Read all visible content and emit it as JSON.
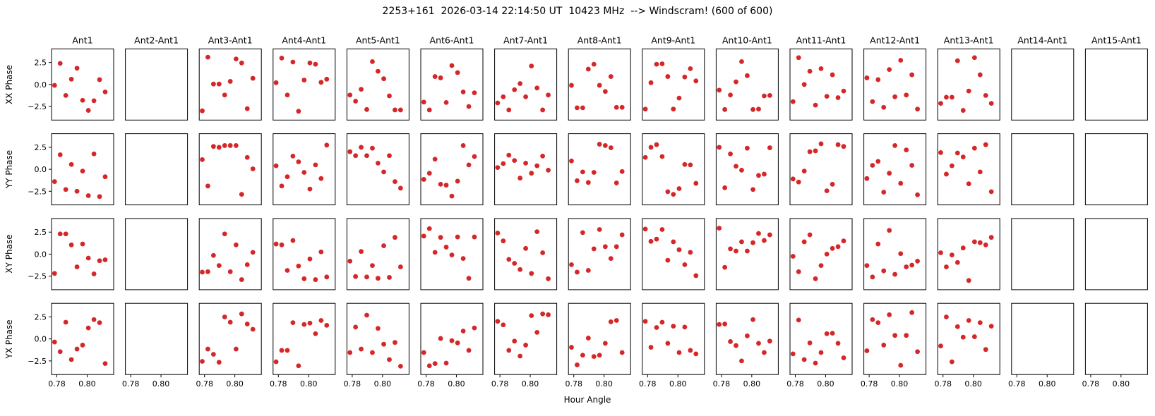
{
  "title": "2253+161  2026-03-14 22:14:50 UT  10423 MHz  --> Windscram! (600 of 600)",
  "chart_data": {
    "type": "scatter",
    "title": "2253+161  2026-03-14 22:14:50 UT  10423 MHz  --> Windscram! (600 of 600)",
    "xlabel": "Hour Angle",
    "rows": [
      "XX Phase",
      "YY Phase",
      "XY Phase",
      "YX Phase"
    ],
    "columns": [
      "Ant1",
      "Ant2-Ant1",
      "Ant3-Ant1",
      "Ant4-Ant1",
      "Ant5-Ant1",
      "Ant6-Ant1",
      "Ant7-Ant1",
      "Ant8-Ant1",
      "Ant9-Ant1",
      "Ant10-Ant1",
      "Ant11-Ant1",
      "Ant12-Ant1",
      "Ant13-Ant1",
      "Ant14-Ant1",
      "Ant15-Ant1"
    ],
    "empty_columns": [
      "Ant2-Ant1",
      "Ant14-Ant1",
      "Ant15-Ant1"
    ],
    "xlim": [
      0.7765,
      0.8175
    ],
    "ylim": [
      -4.05,
      4.05
    ],
    "xticks": [
      0.78,
      0.8
    ],
    "yticks": [
      2.5,
      0.0,
      -2.5
    ],
    "grid": false,
    "legend": "none",
    "point_color": "#d62728",
    "border_color": "#000000",
    "background": "#ffffff",
    "x": [
      0.7785,
      0.7822,
      0.7859,
      0.7896,
      0.7933,
      0.797,
      0.8008,
      0.8045,
      0.8082,
      0.8119
    ],
    "panels": {
      "XX Phase": {
        "Ant1": [
          -0.1,
          2.4,
          -1.25,
          0.6,
          1.85,
          -1.8,
          -2.95,
          -1.85,
          0.55,
          -0.85
        ],
        "Ant2-Ant1": [],
        "Ant3-Ant1": [
          -3.0,
          3.1,
          0.05,
          0.05,
          -1.2,
          0.35,
          2.9,
          2.45,
          -2.75,
          0.7
        ],
        "Ant4-Ant1": [
          0.2,
          3.0,
          -1.2,
          2.55,
          -3.05,
          0.5,
          2.45,
          2.3,
          0.25,
          0.6
        ],
        "Ant5-Ant1": [
          -1.2,
          -1.9,
          -0.55,
          -2.85,
          2.6,
          1.5,
          0.65,
          -1.3,
          -2.9,
          -2.9
        ],
        "Ant6-Ant1": [
          -2.0,
          -2.9,
          0.9,
          0.75,
          -2.05,
          2.15,
          1.35,
          -0.85,
          -2.5,
          -0.95
        ],
        "Ant7-Ant1": [
          -2.1,
          -1.4,
          -2.9,
          -0.6,
          0.1,
          -1.4,
          2.1,
          -0.4,
          -2.9,
          -1.2
        ],
        "Ant8-Ant1": [
          -0.1,
          -2.65,
          -2.65,
          1.75,
          2.3,
          -0.1,
          -0.8,
          0.9,
          -2.6,
          -2.6
        ],
        "Ant9-Ant1": [
          -2.8,
          0.2,
          2.3,
          2.35,
          0.9,
          -2.8,
          -1.55,
          0.85,
          1.8,
          0.4
        ],
        "Ant10-Ant1": [
          -0.65,
          -2.85,
          -1.2,
          0.3,
          2.6,
          1.0,
          -2.85,
          -2.8,
          -1.3,
          -1.25
        ],
        "Ant11-Ant1": [
          -1.95,
          3.05,
          0.0,
          1.5,
          -2.35,
          1.8,
          -1.35,
          1.1,
          -1.5,
          -0.75
        ],
        "Ant12-Ant1": [
          0.75,
          -1.95,
          0.55,
          -2.6,
          1.7,
          -1.4,
          2.75,
          -1.2,
          1.1,
          -2.8
        ],
        "Ant13-Ant1": [
          -2.15,
          -1.45,
          -1.45,
          2.7,
          -2.95,
          -0.75,
          3.05,
          1.1,
          -1.25,
          -2.15
        ],
        "Ant14-Ant1": [],
        "Ant15-Ant1": []
      },
      "YY Phase": {
        "Ant1": [
          -1.4,
          1.65,
          -2.3,
          0.55,
          -2.5,
          -0.2,
          -3.0,
          1.75,
          -3.1,
          -0.85
        ],
        "Ant2-Ant1": [],
        "Ant3-Ant1": [
          1.1,
          -1.9,
          2.6,
          2.5,
          2.7,
          2.7,
          2.7,
          -2.85,
          1.35,
          0.05
        ],
        "Ant4-Ant1": [
          0.4,
          -1.9,
          -0.85,
          1.5,
          0.85,
          -0.35,
          -2.25,
          0.5,
          -1.05,
          2.75
        ],
        "Ant5-Ant1": [
          2.0,
          1.55,
          2.5,
          1.55,
          2.4,
          0.7,
          -0.3,
          1.55,
          -1.4,
          -2.15
        ],
        "Ant6-Ant1": [
          -1.15,
          -0.45,
          1.15,
          -1.7,
          -1.8,
          -3.05,
          -1.35,
          2.7,
          0.5,
          1.45
        ],
        "Ant7-Ant1": [
          0.2,
          0.65,
          1.6,
          1.0,
          -1.0,
          0.7,
          -0.45,
          0.4,
          1.5,
          -0.1
        ],
        "Ant8-Ant1": [
          0.95,
          -1.3,
          -0.3,
          -1.5,
          -0.35,
          2.85,
          2.7,
          2.45,
          -1.55,
          -0.25
        ],
        "Ant9-Ant1": [
          1.35,
          2.5,
          2.8,
          1.45,
          -2.55,
          -2.85,
          -2.2,
          0.55,
          0.5,
          -1.6
        ],
        "Ant10-Ant1": [
          2.5,
          -2.1,
          1.75,
          0.35,
          -0.1,
          2.4,
          -2.3,
          -0.7,
          -0.55,
          2.45
        ],
        "Ant11-Ant1": [
          -1.1,
          -1.45,
          -0.2,
          2.0,
          2.1,
          2.9,
          -2.45,
          -1.7,
          2.8,
          2.6
        ],
        "Ant12-Ant1": [
          -1.05,
          0.45,
          0.9,
          -2.6,
          -0.45,
          2.7,
          -1.6,
          2.2,
          0.45,
          -2.9
        ],
        "Ant13-Ant1": [
          1.9,
          -0.55,
          0.4,
          1.85,
          1.4,
          -1.65,
          2.4,
          -0.3,
          2.8,
          -2.55
        ],
        "Ant14-Ant1": [],
        "Ant15-Ant1": []
      },
      "XY Phase": {
        "Ant1": [
          -2.2,
          2.3,
          2.3,
          1.05,
          -1.45,
          1.15,
          -0.45,
          -2.25,
          -0.75,
          -0.65
        ],
        "Ant2-Ant1": [],
        "Ant3-Ant1": [
          -2.05,
          -2.0,
          -0.15,
          -1.3,
          2.3,
          -2.0,
          1.05,
          -2.9,
          -1.2,
          0.2
        ],
        "Ant4-Ant1": [
          1.15,
          1.05,
          -1.85,
          1.55,
          -1.35,
          -2.8,
          -0.55,
          -2.9,
          0.25,
          -2.6
        ],
        "Ant5-Ant1": [
          -0.8,
          -2.55,
          0.3,
          -2.6,
          -1.3,
          -2.75,
          0.95,
          -2.65,
          1.9,
          -1.45
        ],
        "Ant6-Ant1": [
          2.05,
          2.9,
          0.2,
          1.9,
          0.8,
          -0.1,
          1.95,
          -0.5,
          -2.75,
          1.95
        ],
        "Ant7-Ant1": [
          2.4,
          1.5,
          -0.6,
          -1.05,
          -1.75,
          0.65,
          -2.2,
          2.55,
          0.15,
          -2.8
        ],
        "Ant8-Ant1": [
          -1.2,
          -2.05,
          2.45,
          -1.85,
          0.6,
          2.8,
          0.85,
          -0.5,
          0.85,
          2.2
        ],
        "Ant9-Ant1": [
          2.85,
          1.45,
          1.7,
          2.8,
          -0.7,
          1.4,
          0.5,
          -1.2,
          0.2,
          -2.45
        ],
        "Ant10-Ant1": [
          2.95,
          -1.5,
          0.6,
          0.35,
          1.4,
          0.35,
          1.3,
          2.35,
          1.55,
          2.2
        ],
        "Ant11-Ant1": [
          -0.25,
          -2.0,
          1.4,
          2.2,
          -2.8,
          -1.3,
          0.0,
          0.65,
          0.85,
          1.5
        ],
        "Ant12-Ant1": [
          -1.3,
          -2.6,
          1.15,
          -1.9,
          2.7,
          -2.3,
          0.05,
          -1.45,
          -1.25,
          -0.8
        ],
        "Ant13-Ant1": [
          0.15,
          -1.45,
          -0.1,
          -0.95,
          0.7,
          -3.0,
          1.4,
          1.3,
          1.05,
          1.9
        ],
        "Ant14-Ant1": [],
        "Ant15-Ant1": []
      },
      "YX Phase": {
        "Ant1": [
          -0.35,
          -1.45,
          1.9,
          -2.35,
          -1.15,
          -0.7,
          1.25,
          2.2,
          1.85,
          -2.8
        ],
        "Ant2-Ant1": [],
        "Ant3-Ant1": [
          -2.55,
          -1.15,
          -1.75,
          -2.65,
          2.5,
          1.9,
          -1.15,
          2.85,
          1.7,
          1.1
        ],
        "Ant4-Ant1": [
          -2.6,
          -1.3,
          -1.3,
          1.85,
          -3.05,
          1.65,
          1.8,
          0.6,
          2.1,
          1.55
        ],
        "Ant5-Ant1": [
          -1.55,
          1.35,
          -1.15,
          2.7,
          -1.55,
          1.2,
          -0.6,
          -2.35,
          -0.4,
          -3.1
        ],
        "Ant6-Ant1": [
          -1.55,
          -3.05,
          -2.8,
          0.05,
          -2.75,
          -0.2,
          -0.45,
          0.9,
          -1.3,
          1.25
        ],
        "Ant7-Ant1": [
          2.0,
          1.6,
          -1.3,
          -0.25,
          -1.95,
          -0.7,
          2.65,
          0.75,
          2.85,
          2.75
        ],
        "Ant8-Ant1": [
          -0.95,
          -2.95,
          -1.85,
          0.1,
          -2.0,
          -1.85,
          -0.5,
          1.95,
          2.1,
          -1.55
        ],
        "Ant9-Ant1": [
          2.0,
          -0.95,
          1.3,
          1.9,
          -0.5,
          1.45,
          -1.55,
          1.35,
          -1.3,
          -1.7
        ],
        "Ant10-Ant1": [
          1.65,
          1.7,
          -0.3,
          -0.75,
          -2.5,
          0.35,
          2.2,
          -0.5,
          -1.55,
          -0.25
        ],
        "Ant11-Ant1": [
          -1.7,
          2.15,
          -2.35,
          -0.45,
          -2.75,
          -1.55,
          0.6,
          0.65,
          -0.5,
          -2.15
        ],
        "Ant12-Ant1": [
          -1.35,
          2.2,
          1.85,
          -0.7,
          2.75,
          0.4,
          -3.0,
          0.4,
          3.0,
          -1.45
        ],
        "Ant13-Ant1": [
          -0.8,
          2.5,
          -2.6,
          1.4,
          0.2,
          2.1,
          0.25,
          1.85,
          -1.2,
          1.45
        ],
        "Ant14-Ant1": [],
        "Ant15-Ant1": []
      }
    }
  }
}
